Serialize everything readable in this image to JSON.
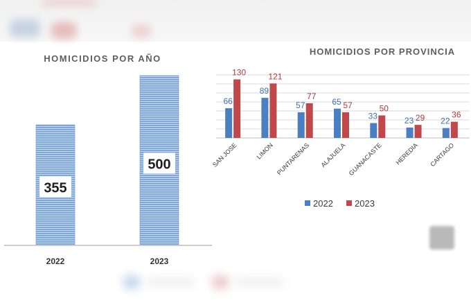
{
  "chart_data": [
    {
      "type": "bar",
      "title": "HOMICIDIOS POR AÑO",
      "categories": [
        "2022",
        "2023"
      ],
      "values": [
        355,
        500
      ],
      "ylim": [
        0,
        600
      ],
      "color": "#7ea6d8",
      "grid": false
    },
    {
      "type": "bar",
      "title": "HOMICIDIOS POR PROVINCIA",
      "categories": [
        "SAN JOSE",
        "LIMON",
        "PUNTARENAS",
        "ALAJUELA",
        "GUANACASTE",
        "HEREDIA",
        "CARTAGO"
      ],
      "series": [
        {
          "name": "2022",
          "values": [
            66,
            89,
            57,
            65,
            33,
            23,
            22
          ],
          "color": "#4a7fc1"
        },
        {
          "name": "2023",
          "values": [
            130,
            121,
            77,
            57,
            50,
            29,
            36
          ],
          "color": "#c0484b"
        }
      ],
      "ylim": [
        0,
        140
      ],
      "grid": true,
      "legend": "bottom"
    }
  ]
}
